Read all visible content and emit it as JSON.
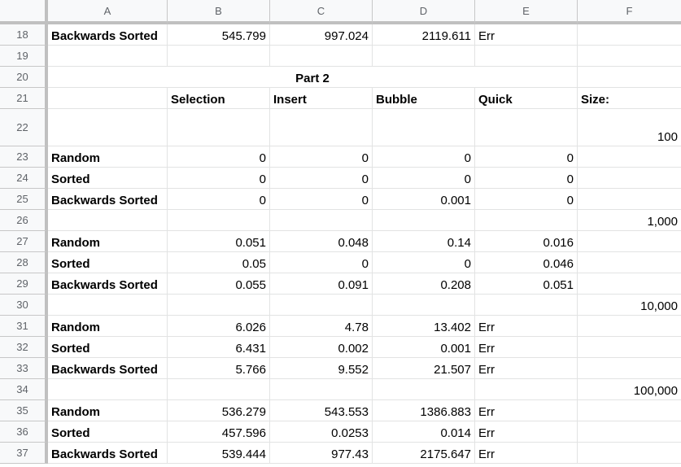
{
  "columns": [
    "A",
    "B",
    "C",
    "D",
    "E",
    "F"
  ],
  "rows": [
    {
      "num": "18",
      "cells": [
        "Backwards Sorted",
        "545.799",
        "997.024",
        "2119.611",
        "Err",
        ""
      ]
    },
    {
      "num": "19",
      "cells": [
        "",
        "",
        "",
        "",
        "",
        ""
      ]
    },
    {
      "num": "20",
      "merged_title": "Part 2",
      "cells": [
        "",
        "",
        "",
        "",
        "",
        ""
      ]
    },
    {
      "num": "21",
      "cells": [
        "",
        "Selection",
        "Insert",
        "Bubble",
        "Quick",
        "Size:"
      ]
    },
    {
      "num": "22",
      "cells": [
        "",
        "",
        "",
        "",
        "",
        "100"
      ]
    },
    {
      "num": "23",
      "cells": [
        "Random",
        "0",
        "0",
        "0",
        "0",
        ""
      ]
    },
    {
      "num": "24",
      "cells": [
        "Sorted",
        "0",
        "0",
        "0",
        "0",
        ""
      ]
    },
    {
      "num": "25",
      "cells": [
        "Backwards Sorted",
        "0",
        "0",
        "0.001",
        "0",
        ""
      ]
    },
    {
      "num": "26",
      "cells": [
        "",
        "",
        "",
        "",
        "",
        "1,000"
      ]
    },
    {
      "num": "27",
      "cells": [
        "Random",
        "0.051",
        "0.048",
        "0.14",
        "0.016",
        ""
      ]
    },
    {
      "num": "28",
      "cells": [
        "Sorted",
        "0.05",
        "0",
        "0",
        "0.046",
        ""
      ]
    },
    {
      "num": "29",
      "cells": [
        "Backwards Sorted",
        "0.055",
        "0.091",
        "0.208",
        "0.051",
        ""
      ]
    },
    {
      "num": "30",
      "cells": [
        "",
        "",
        "",
        "",
        "",
        "10,000"
      ]
    },
    {
      "num": "31",
      "cells": [
        "Random",
        "6.026",
        "4.78",
        "13.402",
        "Err",
        ""
      ]
    },
    {
      "num": "32",
      "cells": [
        "Sorted",
        "6.431",
        "0.002",
        "0.001",
        "Err",
        ""
      ]
    },
    {
      "num": "33",
      "cells": [
        "Backwards Sorted",
        "5.766",
        "9.552",
        "21.507",
        "Err",
        ""
      ]
    },
    {
      "num": "34",
      "cells": [
        "",
        "",
        "",
        "",
        "",
        "100,000"
      ]
    },
    {
      "num": "35",
      "cells": [
        "Random",
        "536.279",
        "543.553",
        "1386.883",
        "Err",
        ""
      ]
    },
    {
      "num": "36",
      "cells": [
        "Sorted",
        "457.596",
        "0.0253",
        "0.014",
        "Err",
        ""
      ]
    },
    {
      "num": "37",
      "cells": [
        "Backwards Sorted",
        "539.444",
        "977.43",
        "2175.647",
        "Err",
        ""
      ]
    }
  ]
}
